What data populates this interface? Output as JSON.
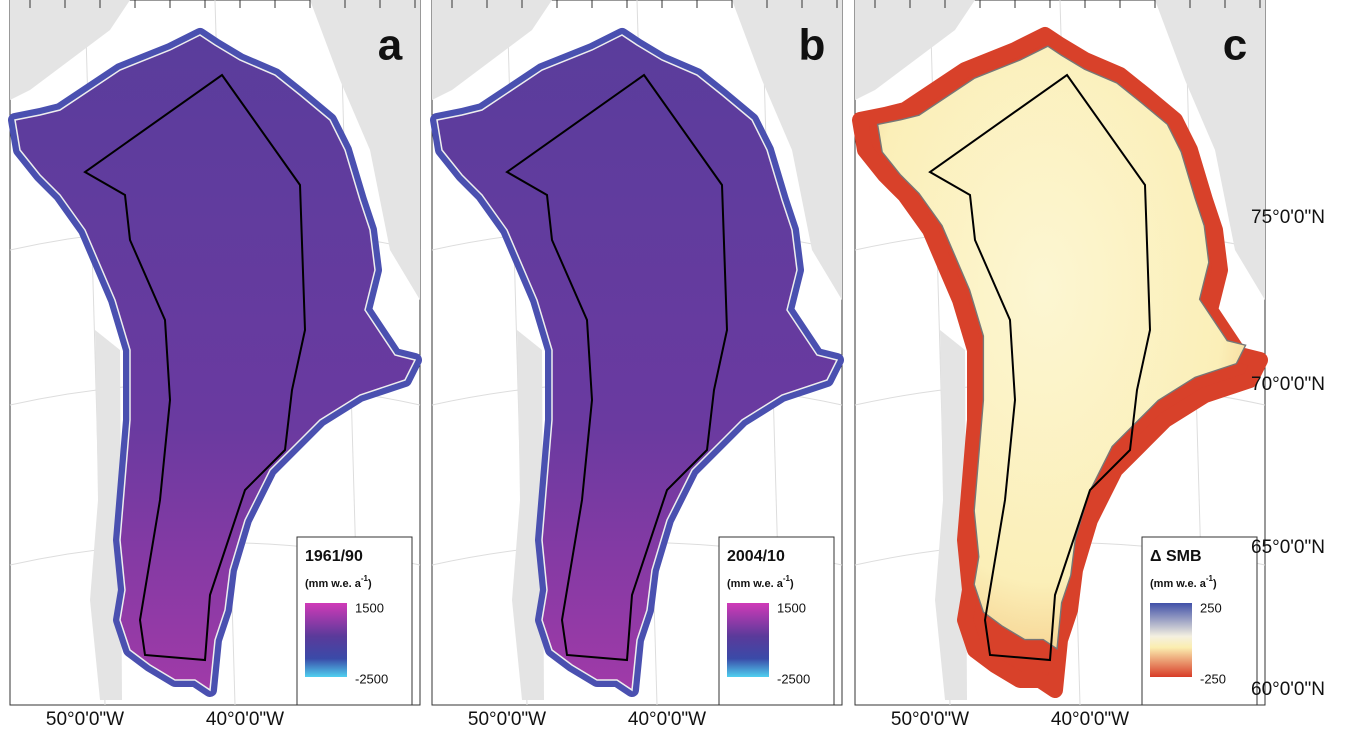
{
  "panels": [
    {
      "letter": "a",
      "legend": {
        "title": "1961/90",
        "unit": "(mm w.e. a",
        "unit_sup": "-1",
        "unit_end": ")",
        "ticks": [
          1500,
          -2500
        ]
      },
      "lon_labels": [
        "50°0'0\"W",
        "40°0'0\"W"
      ]
    },
    {
      "letter": "b",
      "legend": {
        "title": "2004/10",
        "unit": "(mm w.e. a",
        "unit_sup": "-1",
        "unit_end": ")",
        "ticks": [
          1500,
          -2500
        ]
      },
      "lon_labels": [
        "50°0'0\"W",
        "40°0'0\"W"
      ]
    },
    {
      "letter": "c",
      "legend": {
        "title": "Δ SMB",
        "unit": "(mm w.e. a",
        "unit_sup": "-1",
        "unit_end": ")",
        "ticks": [
          250,
          -250
        ]
      },
      "lon_labels": [
        "50°0'0\"W",
        "40°0'0\"W"
      ]
    }
  ],
  "lat_labels": [
    "75°0'0\"N",
    "70°0'0\"N",
    "65°0'0\"N",
    "60°0'0\"N"
  ]
}
